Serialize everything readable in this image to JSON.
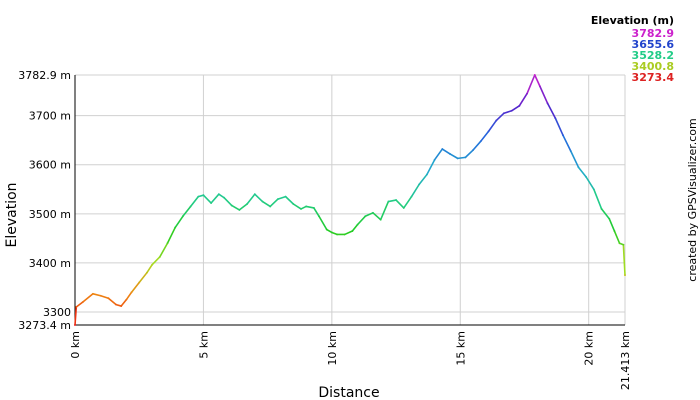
{
  "chart_data": {
    "type": "line",
    "xlabel": "Distance",
    "ylabel": "Elevation",
    "xlim": [
      0,
      21.413
    ],
    "ylim": [
      3273.4,
      3782.9
    ],
    "x_ticks": [
      0,
      5,
      10,
      15,
      20,
      21.413
    ],
    "x_tick_labels": [
      "0 km",
      "5 km",
      "10 km",
      "15 km",
      "20 km",
      "21.413 km"
    ],
    "y_ticks": [
      3273.4,
      3300,
      3400,
      3500,
      3600,
      3700,
      3782.9
    ],
    "y_tick_labels": [
      "3273.4 m",
      "3300",
      "3400 m",
      "3500 m",
      "3600 m",
      "3700 m",
      "3782.9 m"
    ],
    "grid": true,
    "legend": {
      "title": "Elevation (m)",
      "placement": "top-right",
      "entries": [
        {
          "label": "3782.9",
          "color": "#cc22cc"
        },
        {
          "label": "3655.6",
          "color": "#2244cc"
        },
        {
          "label": "3528.2",
          "color": "#22cc88"
        },
        {
          "label": "3400.8",
          "color": "#aacc22"
        },
        {
          "label": "3273.4",
          "color": "#dd2222"
        }
      ]
    },
    "colorscale": [
      "#ee1111",
      "#ee8811",
      "#aadd22",
      "#22cc22",
      "#22cc88",
      "#22aacc",
      "#2266dd",
      "#5522cc",
      "#cc22cc"
    ],
    "series": [
      {
        "x": [
          0,
          0.05,
          0.3,
          0.7,
          1.0,
          1.3,
          1.6,
          1.8,
          2.0,
          2.2,
          2.5,
          2.8,
          3.0,
          3.3,
          3.6,
          3.9,
          4.2,
          4.5,
          4.8,
          5.0,
          5.3,
          5.6,
          5.8,
          6.1,
          6.4,
          6.7,
          7.0,
          7.3,
          7.6,
          7.9,
          8.2,
          8.5,
          8.8,
          9.0,
          9.3,
          9.5,
          9.8,
          10.0,
          10.2,
          10.5,
          10.8,
          11.0,
          11.3,
          11.6,
          11.9,
          12.2,
          12.5,
          12.8,
          13.1,
          13.4,
          13.7,
          14.0,
          14.3,
          14.6,
          14.9,
          15.2,
          15.5,
          15.8,
          16.1,
          16.4,
          16.7,
          17.0,
          17.3,
          17.6,
          17.9,
          18.1,
          18.4,
          18.7,
          19.0,
          19.3,
          19.6,
          19.9,
          20.2,
          20.5,
          20.8,
          21.0,
          21.2,
          21.35,
          21.413
        ],
        "y": [
          3273.4,
          3310,
          3320,
          3337,
          3333,
          3328,
          3315,
          3312,
          3325,
          3340,
          3360,
          3380,
          3396,
          3412,
          3440,
          3472,
          3495,
          3515,
          3535,
          3538,
          3522,
          3540,
          3533,
          3517,
          3508,
          3520,
          3540,
          3525,
          3515,
          3530,
          3535,
          3520,
          3510,
          3515,
          3512,
          3495,
          3468,
          3462,
          3458,
          3458,
          3465,
          3478,
          3495,
          3502,
          3488,
          3525,
          3528,
          3512,
          3535,
          3560,
          3580,
          3610,
          3632,
          3622,
          3613,
          3615,
          3630,
          3648,
          3668,
          3690,
          3705,
          3710,
          3720,
          3745,
          3782.9,
          3760,
          3725,
          3695,
          3660,
          3628,
          3595,
          3575,
          3550,
          3510,
          3490,
          3465,
          3440,
          3437,
          3375
        ]
      }
    ]
  },
  "credit": "created by GPSVisualizer.com"
}
